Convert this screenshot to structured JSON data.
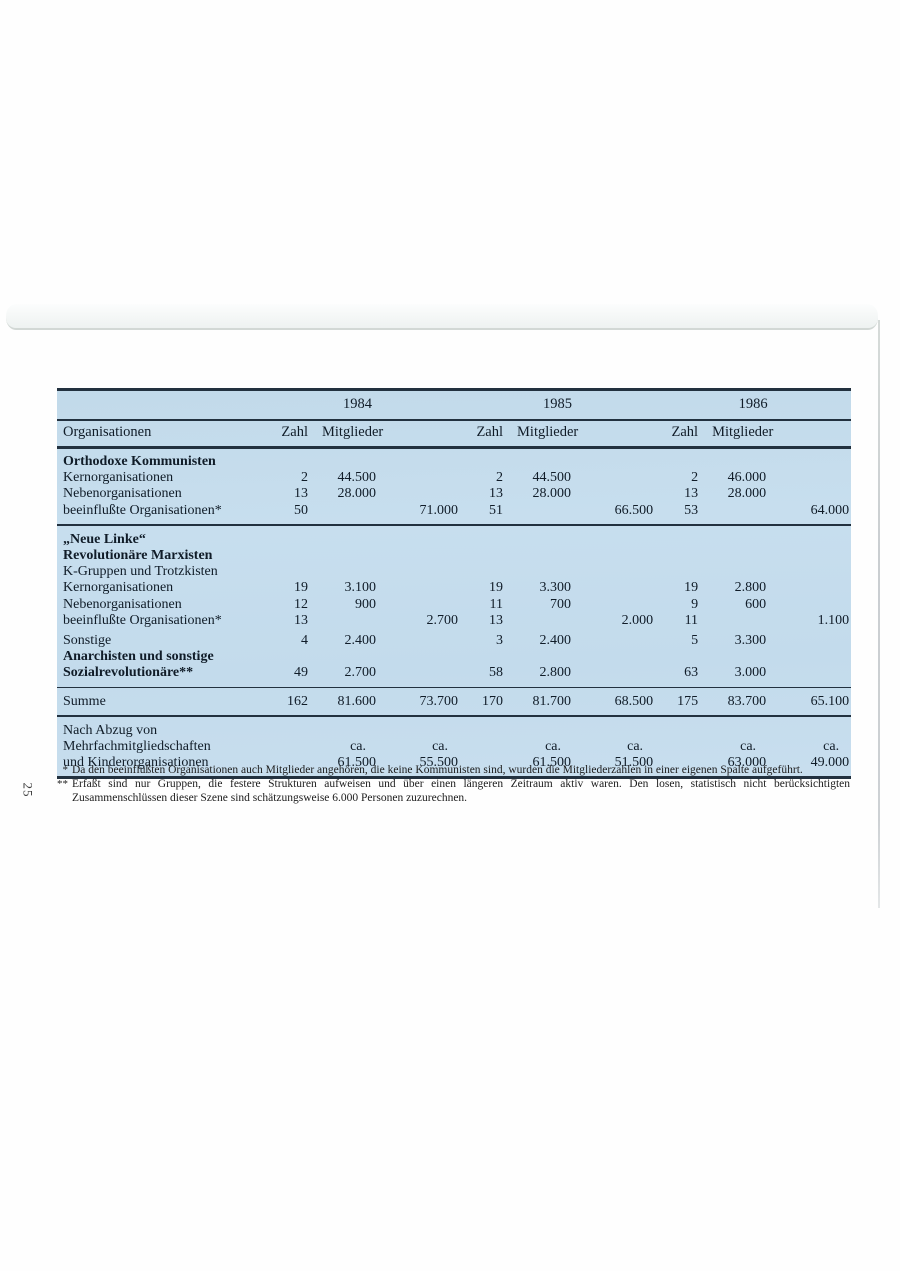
{
  "page": {
    "number": "25"
  },
  "colors": {
    "table_background": "#c5dcec",
    "rule_line": "#22313f",
    "text": "#101c28"
  },
  "table": {
    "years": [
      "1984",
      "1985",
      "1986"
    ],
    "headers": {
      "organisationen": "Organisationen",
      "zahl": "Zahl",
      "mitglieder": "Mitglieder"
    },
    "rows": [
      {
        "label": "Orthodoxe Kommunisten",
        "bold": true,
        "values": [
          "",
          "",
          "",
          "",
          "",
          "",
          "",
          "",
          ""
        ]
      },
      {
        "label": "Kernorganisationen",
        "values": [
          "2",
          "44.500",
          "",
          "2",
          "44.500",
          "",
          "2",
          "46.000",
          ""
        ]
      },
      {
        "label": "Nebenorganisationen",
        "values": [
          "13",
          "28.000",
          "",
          "13",
          "28.000",
          "",
          "13",
          "28.000",
          ""
        ]
      },
      {
        "label": "beeinflußte Organisationen*",
        "values": [
          "50",
          "",
          "71.000",
          "51",
          "",
          "66.500",
          "53",
          "",
          "64.000"
        ],
        "pad_bottom": true
      },
      {
        "label": "„Neue Linke“",
        "bold": true,
        "rule_above": "thick",
        "pad_top": true,
        "values": [
          "",
          "",
          "",
          "",
          "",
          "",
          "",
          "",
          ""
        ]
      },
      {
        "label": "Revolutionäre Marxisten",
        "bold": true,
        "values": [
          "",
          "",
          "",
          "",
          "",
          "",
          "",
          "",
          ""
        ]
      },
      {
        "label": "K-Gruppen und Trotzkisten",
        "values": [
          "",
          "",
          "",
          "",
          "",
          "",
          "",
          "",
          ""
        ]
      },
      {
        "label": "Kernorganisationen",
        "values": [
          "19",
          "3.100",
          "",
          "19",
          "3.300",
          "",
          "19",
          "2.800",
          ""
        ]
      },
      {
        "label": "Nebenorganisationen",
        "values": [
          "12",
          "900",
          "",
          "11",
          "700",
          "",
          "9",
          "600",
          ""
        ]
      },
      {
        "label": "beeinflußte Organisationen*",
        "values": [
          "13",
          "",
          "2.700",
          "13",
          "",
          "2.000",
          "11",
          "",
          "1.100"
        ]
      },
      {
        "label": "Sonstige",
        "values": [
          "4",
          "2.400",
          "",
          "3",
          "2.400",
          "",
          "5",
          "3.300",
          ""
        ],
        "gap_above": true
      },
      {
        "label": "Anarchisten und sonstige",
        "bold": true,
        "values": [
          "",
          "",
          "",
          "",
          "",
          "",
          "",
          "",
          ""
        ]
      },
      {
        "label": "Sozialrevolutionäre**",
        "bold": true,
        "values": [
          "49",
          "2.700",
          "",
          "58",
          "2.800",
          "",
          "63",
          "3.000",
          ""
        ],
        "pad_bottom": true
      },
      {
        "label": "Summe",
        "values": [
          "162",
          "81.600",
          "73.700",
          "170",
          "81.700",
          "68.500",
          "175",
          "83.700",
          "65.100"
        ],
        "rule_above": "thin",
        "pad_top": true,
        "pad_bottom": true
      },
      {
        "label": "Nach Abzug von",
        "rule_above": "medium",
        "pad_top": true,
        "values": [
          "",
          "",
          "",
          "",
          "",
          "",
          "",
          "",
          ""
        ]
      },
      {
        "label": "Mehrfachmitgliedschaften",
        "values": [
          "",
          "ca.",
          "ca.",
          "",
          "ca.",
          "ca.",
          "",
          "ca.",
          "ca."
        ],
        "ca_row": true
      },
      {
        "label": "und Kinderorganisationen",
        "values": [
          "",
          "61.500",
          "55.500",
          "",
          "61.500",
          "51.500",
          "",
          "63.000",
          "49.000"
        ],
        "pad_bottom": true
      }
    ]
  },
  "footnotes": [
    {
      "marker": "*",
      "text": "Da den beeinflußten Organisationen auch Mitglieder angehören, die keine Kommunisten sind, wurden die Mitgliederzahlen in einer eigenen Spalte aufgeführt."
    },
    {
      "marker": "**",
      "text": "Erfaßt sind nur Gruppen, die festere Strukturen aufweisen und über einen längeren Zeitraum aktiv waren. Den losen, statistisch nicht berücksichtigten Zusammenschlüssen dieser Szene sind schätzungsweise 6.000 Personen zuzurechnen.",
      "justify": true
    }
  ]
}
